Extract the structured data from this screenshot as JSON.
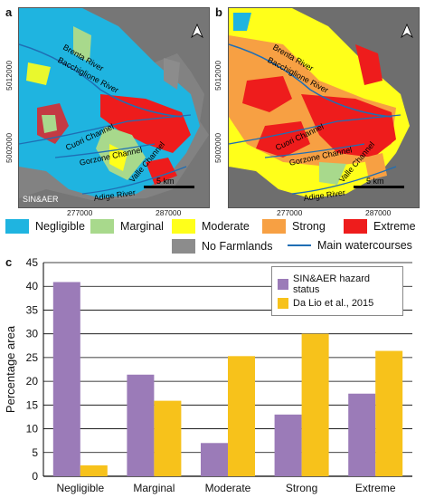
{
  "panels": {
    "a": {
      "letter": "a",
      "scale_label": "5 km",
      "corner_label": "SIN&AER",
      "labels": {
        "brenta": "Brenta River",
        "bacchiglione": "Bacchiglione River",
        "cuori": "Cuori Channel",
        "gorzone": "Gorzone Channel",
        "valle": "Valle Channel",
        "adige": "Adige River"
      }
    },
    "b": {
      "letter": "b",
      "scale_label": "5 km",
      "labels": {
        "brenta": "Brenta River",
        "bacchiglione": "Bacchiglione River",
        "cuori": "Cuori Channel",
        "gorzone": "Gorzone Channel",
        "valle": "Valle Channel",
        "adige": "Adige River"
      }
    },
    "c": {
      "letter": "c"
    }
  },
  "coords": {
    "y_top": "5012000",
    "y_bottom": "5002000",
    "x_left": "277000",
    "x_right": "287000"
  },
  "map_legend": {
    "negligible": {
      "label": "Negligible",
      "color": "#1fb4e0"
    },
    "marginal": {
      "label": "Marginal",
      "color": "#a8d98c"
    },
    "moderate": {
      "label": "Moderate",
      "color": "#ffff1a"
    },
    "strong": {
      "label": "Strong",
      "color": "#f7a043"
    },
    "extreme": {
      "label": "Extreme",
      "color": "#ee1c1c"
    },
    "no_farmlands": {
      "label": "No Farmlands",
      "color": "#8c8c8c"
    },
    "watercourses": {
      "label": "Main watercourses",
      "color": "#1f6eb4"
    }
  },
  "chart_data": {
    "type": "bar",
    "title": "",
    "xlabel": "",
    "ylabel": "Percentage area",
    "ylim": [
      0,
      45
    ],
    "yticks": [
      0,
      5,
      10,
      15,
      20,
      25,
      30,
      35,
      40,
      45
    ],
    "grid": "horizontal",
    "legend_position": "top-right",
    "categories": [
      "Negligible",
      "Marginal",
      "Moderate",
      "Strong",
      "Extreme"
    ],
    "series": [
      {
        "name": "SIN&AER hazard status",
        "color": "#9b7bb8",
        "values": [
          40.9,
          21.4,
          7.0,
          13.0,
          17.4
        ]
      },
      {
        "name": "Da Lio et al., 2015",
        "color": "#f7c21b",
        "values": [
          2.3,
          15.9,
          25.3,
          30.0,
          26.4
        ]
      }
    ]
  }
}
